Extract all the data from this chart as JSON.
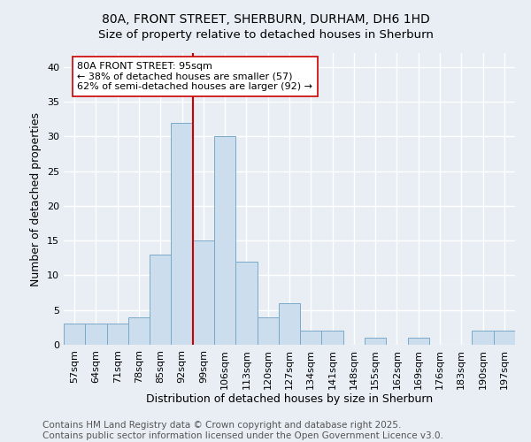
{
  "title": "80A, FRONT STREET, SHERBURN, DURHAM, DH6 1HD",
  "subtitle": "Size of property relative to detached houses in Sherburn",
  "xlabel": "Distribution of detached houses by size in Sherburn",
  "ylabel": "Number of detached properties",
  "categories": [
    "57sqm",
    "64sqm",
    "71sqm",
    "78sqm",
    "85sqm",
    "92sqm",
    "99sqm",
    "106sqm",
    "113sqm",
    "120sqm",
    "127sqm",
    "134sqm",
    "141sqm",
    "148sqm",
    "155sqm",
    "162sqm",
    "169sqm",
    "176sqm",
    "183sqm",
    "190sqm",
    "197sqm"
  ],
  "values": [
    3,
    3,
    3,
    4,
    13,
    32,
    15,
    30,
    12,
    4,
    6,
    2,
    2,
    0,
    1,
    0,
    1,
    0,
    0,
    2,
    2
  ],
  "bar_color": "#ccdded",
  "bar_edge_color": "#7aaac8",
  "subject_line_color": "#cc0000",
  "annotation_text": "80A FRONT STREET: 95sqm\n← 38% of detached houses are smaller (57)\n62% of semi-detached houses are larger (92) →",
  "annotation_box_color": "#ffffff",
  "annotation_box_edge_color": "#cc0000",
  "ylim": [
    0,
    42
  ],
  "yticks": [
    0,
    5,
    10,
    15,
    20,
    25,
    30,
    35,
    40
  ],
  "footer_text": "Contains HM Land Registry data © Crown copyright and database right 2025.\nContains public sector information licensed under the Open Government Licence v3.0.",
  "background_color": "#e8eef4",
  "grid_color": "#ffffff",
  "title_fontsize": 10,
  "axis_label_fontsize": 9,
  "tick_fontsize": 8,
  "annotation_fontsize": 8,
  "footer_fontsize": 7.5
}
